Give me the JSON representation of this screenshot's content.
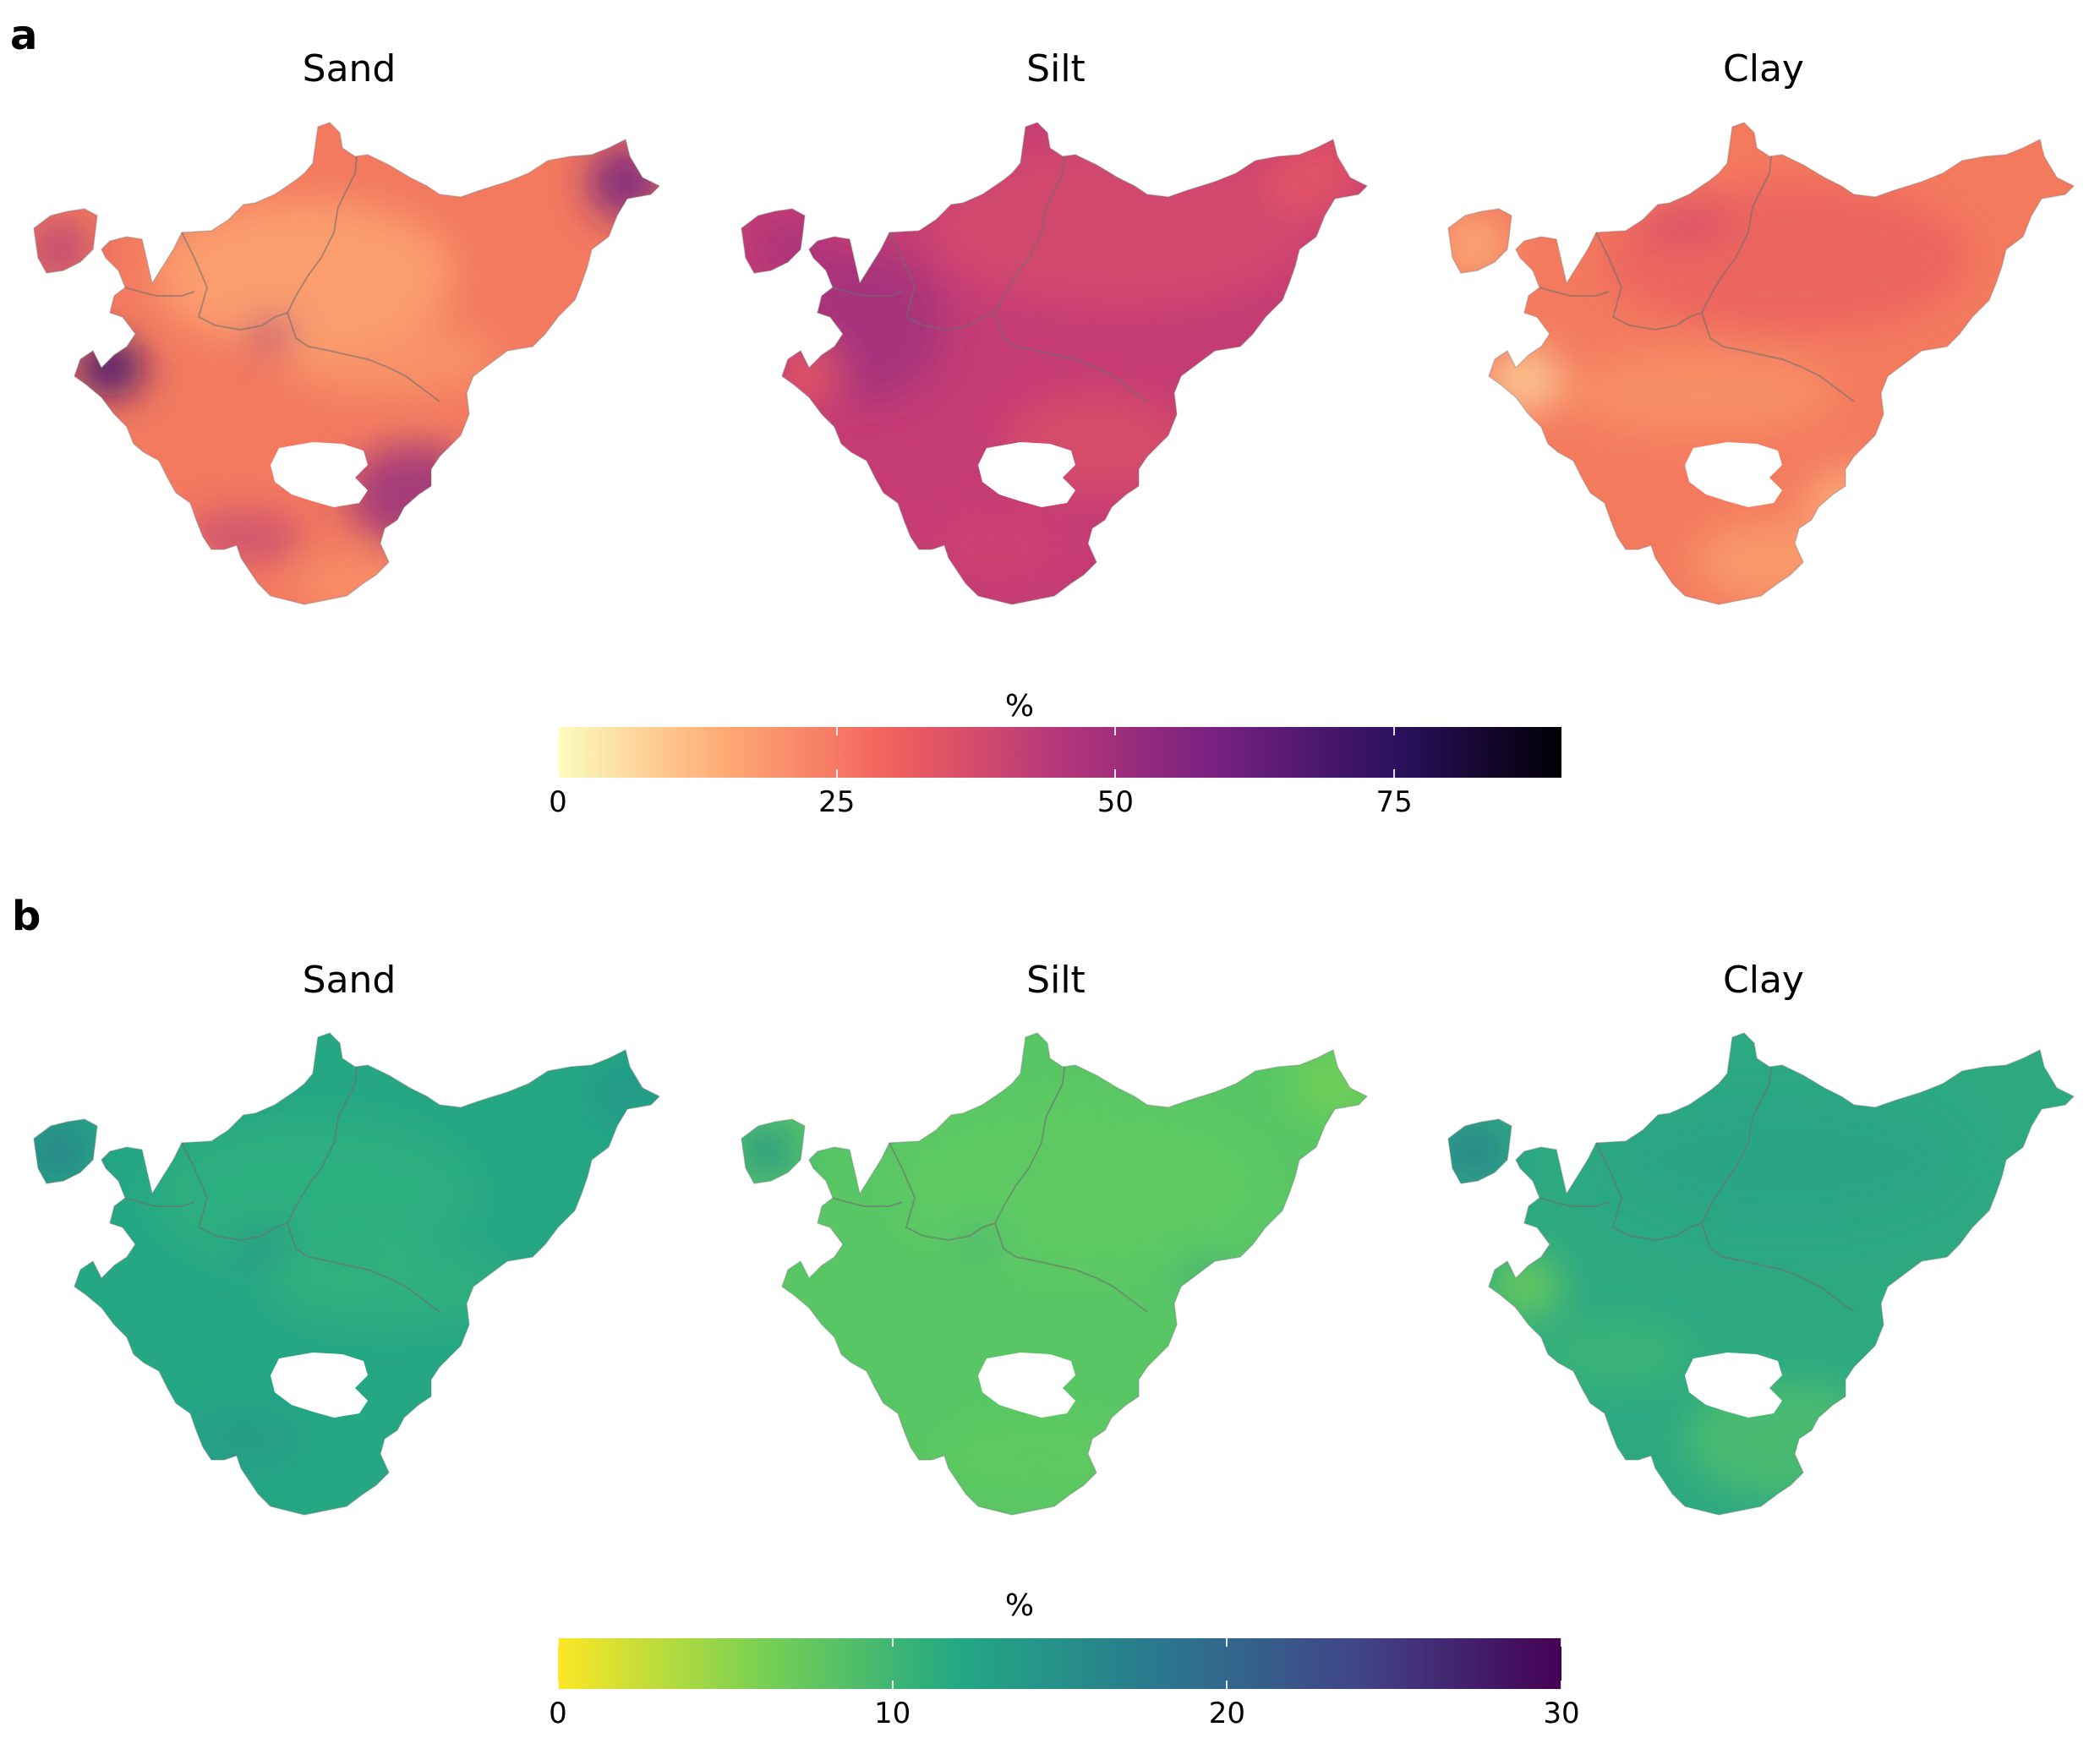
{
  "panels": [
    {
      "letter": "a",
      "maps": [
        {
          "title": "Sand",
          "pattern": "sand"
        },
        {
          "title": "Silt",
          "pattern": "silt"
        },
        {
          "title": "Clay",
          "pattern": "clay"
        }
      ],
      "legend": {
        "title": "%",
        "range": [
          0,
          90
        ],
        "ticks": [
          {
            "value": 0,
            "label": "0"
          },
          {
            "value": 25,
            "label": "25"
          },
          {
            "value": 50,
            "label": "50"
          },
          {
            "value": 75,
            "label": "75"
          }
        ],
        "colors": [
          "#fcfdbf",
          "#fea973",
          "#f1605d",
          "#b5367a",
          "#721f81",
          "#2c115f",
          "#000004"
        ]
      }
    },
    {
      "letter": "b",
      "maps": [
        {
          "title": "Sand",
          "pattern": "sand"
        },
        {
          "title": "Silt",
          "pattern": "silt"
        },
        {
          "title": "Clay",
          "pattern": "clay"
        }
      ],
      "legend": {
        "title": "%",
        "range": [
          0,
          30
        ],
        "ticks": [
          {
            "value": 0,
            "label": "0"
          },
          {
            "value": 10,
            "label": "10"
          },
          {
            "value": 20,
            "label": "20"
          },
          {
            "value": 30,
            "label": "30"
          }
        ],
        "colors": [
          "#fde725",
          "#7ad151",
          "#22a884",
          "#2a788e",
          "#414487",
          "#440154"
        ]
      }
    }
  ]
}
